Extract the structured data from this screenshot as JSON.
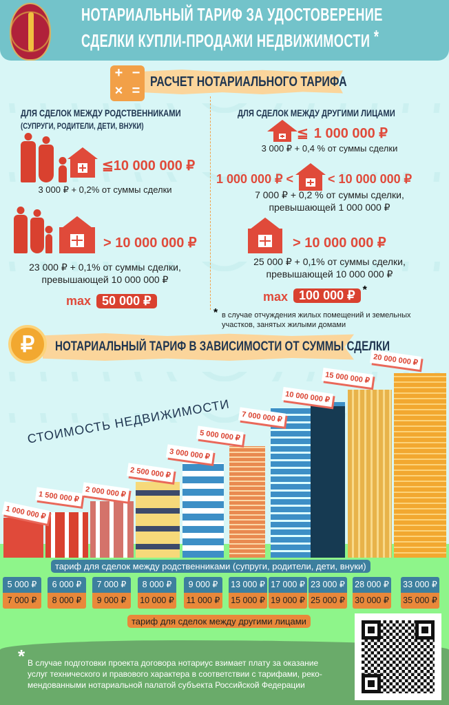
{
  "header": {
    "title_line1": "НОТАРИАЛЬНЫЙ ТАРИФ  ЗА УДОСТОВЕРЕНИЕ",
    "title_line2": "СДЕЛКИ КУПЛИ-ПРОДАЖИ НЕДВИЖИМОСТИ",
    "asterisk": "*"
  },
  "calc_section": {
    "title": "РАСЧЕТ НОТАРИАЛЬНОГО ТАРИФА",
    "icon_symbols": [
      "+",
      "−",
      "×",
      "="
    ]
  },
  "relatives": {
    "heading": "ДЛЯ СДЕЛОК МЕЖДУ РОДСТВЕННИКАМИ",
    "subheading": "(СУПРУГИ, РОДИТЕЛИ, ДЕТИ, ВНУКИ)",
    "rule1_threshold": "≦10 000 000 ₽",
    "rule1_text": "3 000 ₽ + 0,2% от суммы сделки",
    "rule2_threshold": "> 10 000 000 ₽",
    "rule2_text1": "23 000 ₽ + 0,1% от суммы сделки,",
    "rule2_text2": "превышающей 10 000 000 ₽",
    "max_label": "max",
    "max_value": "50 000 ₽"
  },
  "others": {
    "heading": "ДЛЯ СДЕЛОК МЕЖДУ ДРУГИМИ ЛИЦАМИ",
    "rule1_sign": "≦",
    "rule1_threshold": "1 000 000 ₽",
    "rule1_text": "3 000 ₽ + 0,4 % от суммы сделки",
    "rule2_left": "1 000 000 ₽ <",
    "rule2_right": "< 10 000 000 ₽",
    "rule2_text1": "7 000 ₽ + 0,2 % от суммы сделки,",
    "rule2_text2": "превышающей 1 000 000 ₽",
    "rule3_threshold": "> 10 000 000 ₽",
    "rule3_text1": "25 000 ₽ + 0,1% от суммы сделки,",
    "rule3_text2": "превышающей 10 000 000 ₽",
    "max_label": "max",
    "max_value": "100 000 ₽",
    "max_asterisk": "*",
    "footnote_star": "*",
    "footnote": "в случае отчуждения жилых помещений и земельных участков, занятых жилыми домами"
  },
  "dependency_section": {
    "title": "НОТАРИАЛЬНЫЙ ТАРИФ В ЗАВИСИМОСТИ ОТ СУММЫ СДЕЛКИ",
    "icon": "ruble-coin-icon",
    "coin_symbol": "₽",
    "axis_label": "СТОИМОСТЬ НЕДВИЖИМОСТИ"
  },
  "prices": [
    "1 000 000 ₽",
    "1 500 000 ₽",
    "2 000 000 ₽",
    "2 500 000 ₽",
    "3 000 000 ₽",
    "5 000 000 ₽",
    "7 000 000 ₽",
    "10 000 000 ₽",
    "15 000 000 ₽",
    "20 000 000 ₽"
  ],
  "tariffs": {
    "relatives_label": "тариф для сделок между родственниками (супруги, родители, дети, внуки)",
    "others_label": "тариф для сделок между другими лицами",
    "relatives": [
      "5 000 ₽",
      "6 000 ₽",
      "7 000 ₽",
      "8 000 ₽",
      "9 000 ₽",
      "13 000 ₽",
      "17 000 ₽",
      "23 000 ₽",
      "28 000 ₽",
      "33 000 ₽"
    ],
    "others": [
      "7 000 ₽",
      "8 000 ₽",
      "9 000 ₽",
      "10 000 ₽",
      "11 000 ₽",
      "15 000 ₽",
      "19 000 ₽",
      "25 000 ₽",
      "30 000 ₽",
      "35 000 ₽"
    ]
  },
  "footer": {
    "star": "*",
    "line1": "В случае подготовки проекта договора нотариус взимает плату за оказание",
    "line2": "услуг технического и правового характера в соответствии с тарифами, реко-",
    "line3": "мендованными нотариальной палатой субъекта Российской Федерации"
  },
  "colors": {
    "header": "#73c3ca",
    "accent_red": "#d9412f",
    "navy": "#1f3550",
    "blue_box": "#3d7f9e",
    "orange_box": "#e9883a",
    "grass": "#8ef58a",
    "dark_grass": "#6aab6a"
  }
}
